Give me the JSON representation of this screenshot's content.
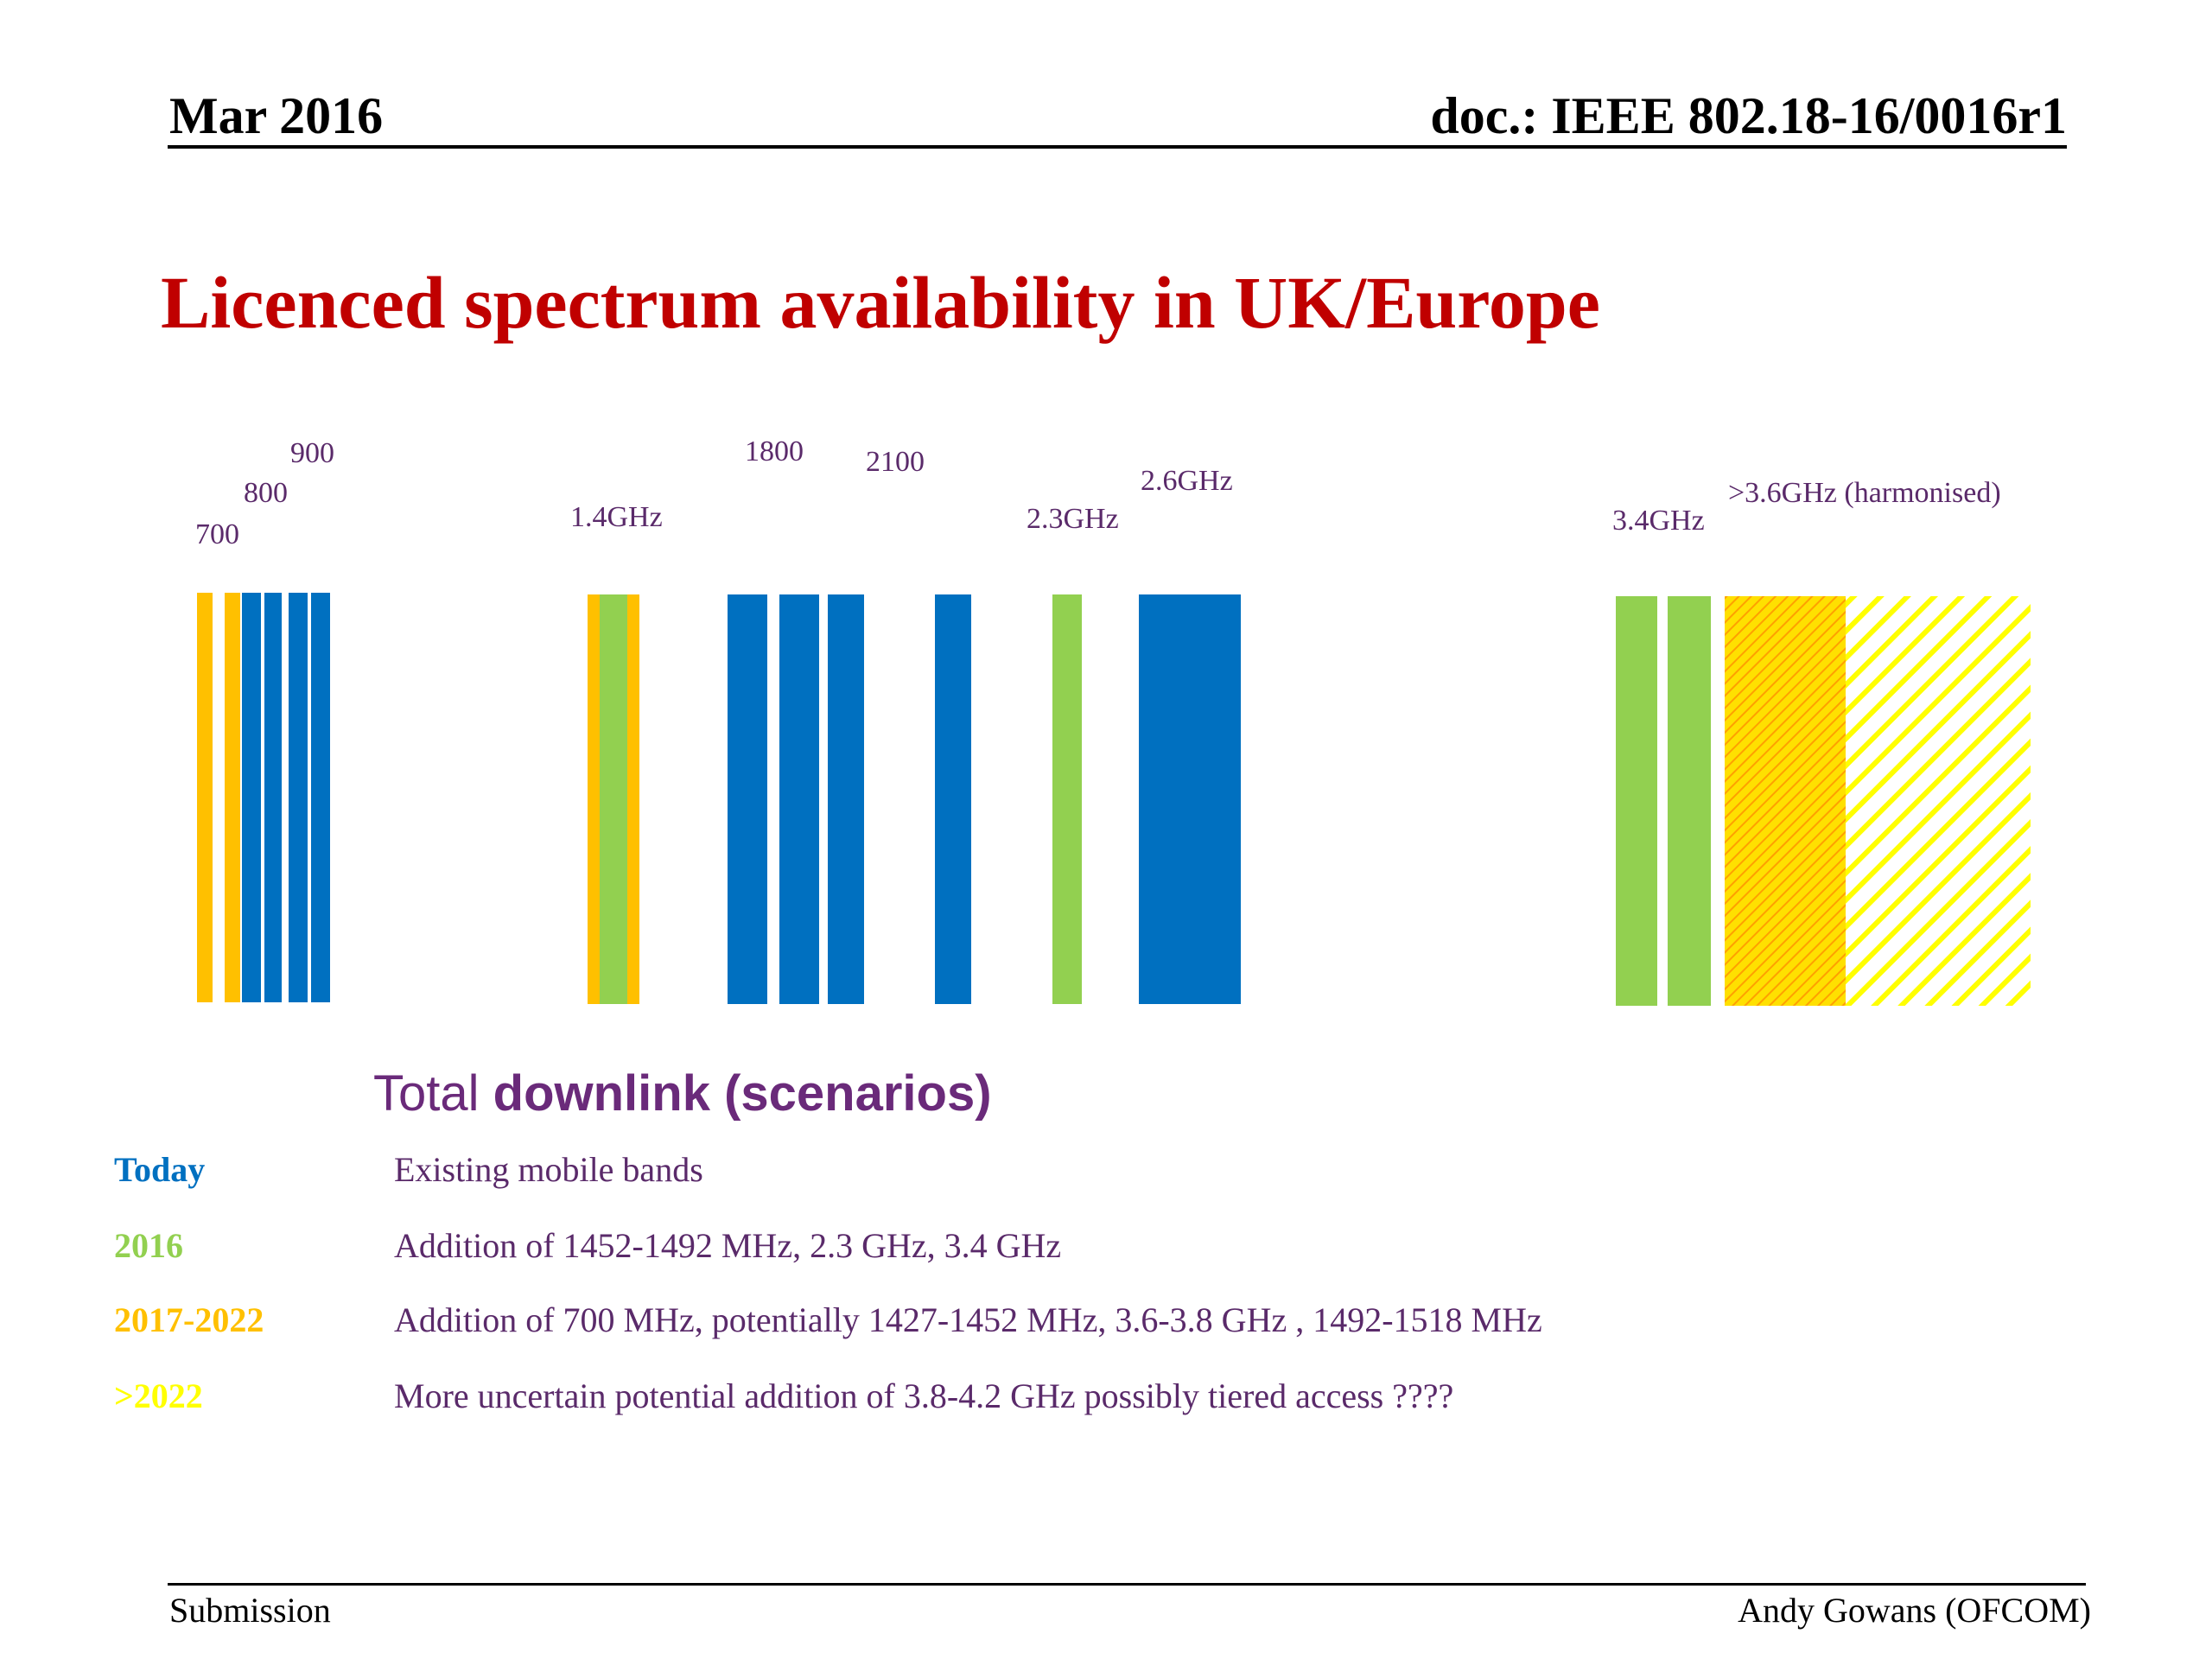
{
  "header": {
    "date": "Mar 2016",
    "doc": "doc.: IEEE 802.18-16/0016r1"
  },
  "title": "Licenced spectrum availability in UK/Europe",
  "band_labels": [
    "900",
    "800",
    "700",
    "1.4GHz",
    "1800",
    "2100",
    "2.3GHz",
    "2.6GHz",
    "3.4GHz",
    ">3.6GHz (harmonised)"
  ],
  "colors": {
    "today": "#0070c0",
    "y2016": "#92d050",
    "y2017_2022": "#ffc000",
    "after_2022": "#ffff00",
    "text": "#5a2a6a",
    "title": "#c00000"
  },
  "subtitle": {
    "plain": "Total ",
    "bold": "downlink (scenarios)"
  },
  "scenarios": [
    {
      "label": "Today",
      "color": "#0070c0",
      "desc": "Existing mobile bands"
    },
    {
      "label": "2016",
      "color": "#92d050",
      "desc": "Addition of 1452-1492 MHz, 2.3 GHz, 3.4 GHz"
    },
    {
      "label": "2017-2022",
      "color": "#ffc000",
      "desc": "Addition of 700 MHz, potentially 1427-1452 MHz, 3.6-3.8 GHz , 1492-1518 MHz"
    },
    {
      "label": ">2022",
      "color": "#ffff00",
      "desc": "More uncertain potential addition of 3.8-4.2 GHz possibly tiered access ????"
    }
  ],
  "footer": {
    "left": "Submission",
    "right": "Andy Gowans (OFCOM)"
  }
}
